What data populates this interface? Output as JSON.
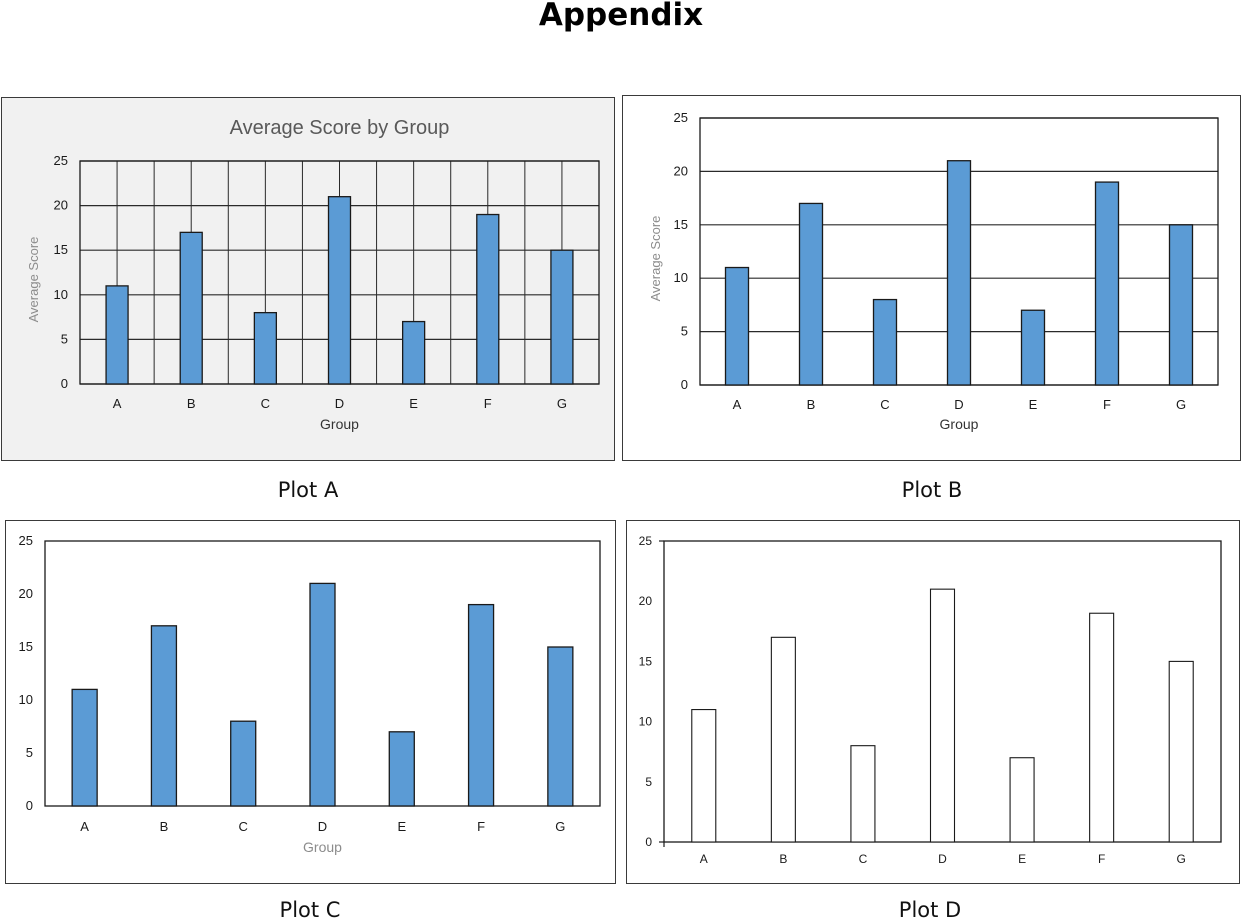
{
  "page_title": "Appendix",
  "captions": [
    "Plot A",
    "Plot B",
    "Plot C",
    "Plot D"
  ],
  "colors": {
    "bar_fill": "#5b9bd5",
    "bar_outline": "#1a1a1a",
    "hollow_fill": "#ffffff",
    "panel_a_bg": "#f1f1f1",
    "axis_label_gray": "#8c8c8c"
  },
  "chart_data": [
    {
      "panel": "Plot A",
      "type": "bar",
      "title": "Average Score by Group",
      "xlabel": "Group",
      "ylabel": "Average Score",
      "categories": [
        "A",
        "B",
        "C",
        "D",
        "E",
        "F",
        "G"
      ],
      "values": [
        11,
        17,
        8,
        21,
        7,
        19,
        15
      ],
      "yticks": [
        "0",
        "5",
        "10",
        "15",
        "20",
        "25"
      ],
      "ylim": [
        0,
        25
      ],
      "grid": "horizontal and vertical",
      "bar_style": "filled",
      "background": "gray"
    },
    {
      "panel": "Plot B",
      "type": "bar",
      "title": "",
      "xlabel": "Group",
      "ylabel": "Average Score",
      "categories": [
        "A",
        "B",
        "C",
        "D",
        "E",
        "F",
        "G"
      ],
      "values": [
        11,
        17,
        8,
        21,
        7,
        19,
        15
      ],
      "yticks": [
        "0",
        "5",
        "10",
        "15",
        "20",
        "25"
      ],
      "ylim": [
        0,
        25
      ],
      "grid": "horizontal",
      "bar_style": "filled",
      "background": "white"
    },
    {
      "panel": "Plot C",
      "type": "bar",
      "title": "",
      "xlabel": "Group",
      "ylabel": "",
      "categories": [
        "A",
        "B",
        "C",
        "D",
        "E",
        "F",
        "G"
      ],
      "values": [
        11,
        17,
        8,
        21,
        7,
        19,
        15
      ],
      "yticks": [
        "0",
        "5",
        "10",
        "15",
        "20",
        "25"
      ],
      "ylim": [
        0,
        25
      ],
      "grid": "none",
      "bar_style": "filled",
      "background": "white"
    },
    {
      "panel": "Plot D",
      "type": "bar",
      "title": "",
      "xlabel": "",
      "ylabel": "",
      "categories": [
        "A",
        "B",
        "C",
        "D",
        "E",
        "F",
        "G"
      ],
      "values": [
        11,
        17,
        8,
        21,
        7,
        19,
        15
      ],
      "yticks": [
        "0",
        "5",
        "10",
        "15",
        "20",
        "25"
      ],
      "ylim": [
        0,
        25
      ],
      "grid": "none",
      "bar_style": "hollow",
      "background": "white"
    }
  ]
}
